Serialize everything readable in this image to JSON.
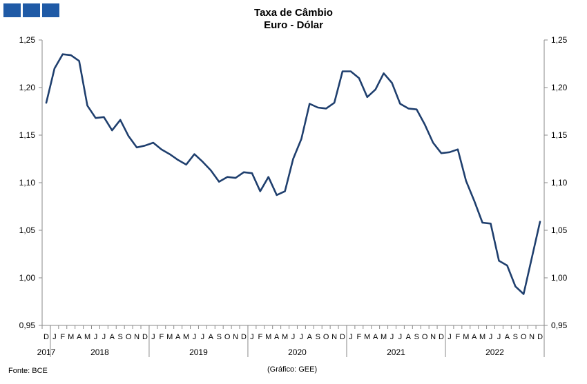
{
  "brand": {
    "color": "#1f5aa6"
  },
  "title": {
    "line1": "Taxa de Câmbio",
    "line2": "Euro - Dólar"
  },
  "footer": {
    "source": "Fonte: BCE",
    "credit": "(Gráfico: GEE)"
  },
  "chart_data": {
    "type": "line",
    "ylim": [
      0.95,
      1.25
    ],
    "y_ticks": [
      "0,95",
      "1,00",
      "1,05",
      "1,10",
      "1,15",
      "1,20",
      "1,25"
    ],
    "grid": false,
    "line_color": "#1f3f6e",
    "month_labels": [
      "D",
      "J",
      "F",
      "M",
      "A",
      "M",
      "J",
      "J",
      "A",
      "S",
      "O",
      "N",
      "D",
      "J",
      "F",
      "M",
      "A",
      "M",
      "J",
      "J",
      "A",
      "S",
      "O",
      "N",
      "D",
      "J",
      "F",
      "M",
      "A",
      "M",
      "J",
      "J",
      "A",
      "S",
      "O",
      "N",
      "D",
      "J",
      "F",
      "M",
      "A",
      "M",
      "J",
      "J",
      "A",
      "S",
      "O",
      "N",
      "D",
      "J",
      "F",
      "M",
      "A",
      "M",
      "J",
      "J",
      "A",
      "S",
      "O",
      "N",
      "D"
    ],
    "years": [
      {
        "label": "2017",
        "start": 0,
        "end": 0
      },
      {
        "label": "2018",
        "start": 1,
        "end": 12
      },
      {
        "label": "2019",
        "start": 13,
        "end": 24
      },
      {
        "label": "2020",
        "start": 25,
        "end": 36
      },
      {
        "label": "2021",
        "start": 37,
        "end": 48
      },
      {
        "label": "2022",
        "start": 49,
        "end": 60
      }
    ],
    "series": [
      {
        "values": [
          1.184,
          1.22,
          1.235,
          1.234,
          1.228,
          1.181,
          1.168,
          1.169,
          1.155,
          1.166,
          1.149,
          1.137,
          1.139,
          1.142,
          1.135,
          1.13,
          1.124,
          1.119,
          1.13,
          1.122,
          1.113,
          1.101,
          1.106,
          1.105,
          1.111,
          1.11,
          1.091,
          1.106,
          1.087,
          1.091,
          1.125,
          1.146,
          1.183,
          1.179,
          1.178,
          1.184,
          1.217,
          1.217,
          1.21,
          1.19,
          1.198,
          1.215,
          1.205,
          1.183,
          1.178,
          1.177,
          1.161,
          1.142,
          1.131,
          1.132,
          1.135,
          1.102,
          1.081,
          1.058,
          1.057,
          1.018,
          1.013,
          0.991,
          0.983,
          1.021,
          1.059
        ]
      }
    ]
  }
}
